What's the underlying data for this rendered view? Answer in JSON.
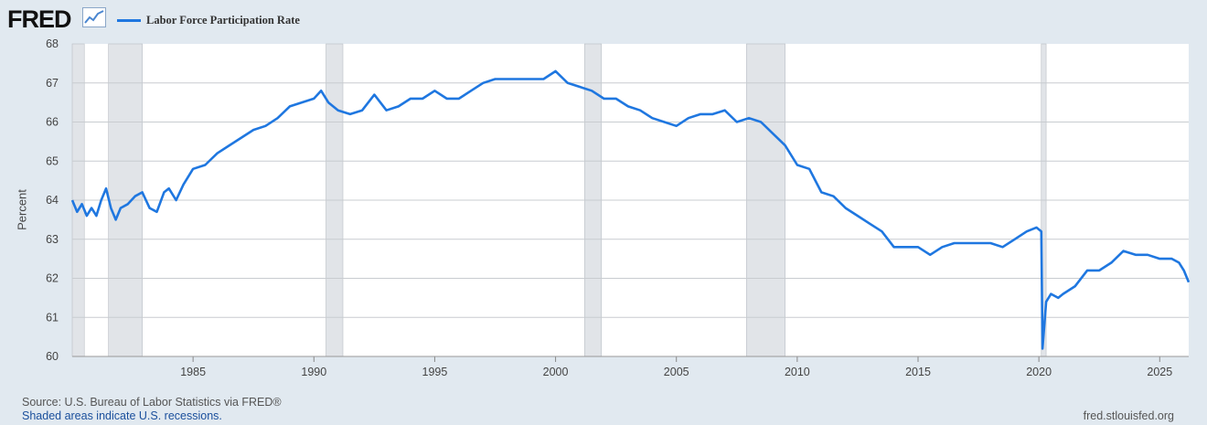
{
  "brand": {
    "logo_text": "FRED",
    "logo_icon": "chart-line-icon"
  },
  "legend": {
    "label": "Labor Force Participation Rate",
    "color": "#1f77e0"
  },
  "footer": {
    "source": "Source: U.S. Bureau of Labor Statistics via FRED®",
    "shading_note": "Shaded areas indicate U.S. recessions.",
    "site": "fred.stlouisfed.org"
  },
  "colors": {
    "background": "#e1e9f0",
    "plot": "#ffffff",
    "grid": "#c8ccd0",
    "recession": "#e1e4e8",
    "line": "#1f77e0"
  },
  "chart_data": {
    "type": "line",
    "title": "",
    "xlabel": "",
    "ylabel": "Percent",
    "xlim": [
      1980.0,
      2026.2
    ],
    "ylim": [
      60,
      68
    ],
    "x_ticks": [
      1985,
      1990,
      1995,
      2000,
      2005,
      2010,
      2015,
      2020,
      2025
    ],
    "y_ticks": [
      60,
      61,
      62,
      63,
      64,
      65,
      66,
      67,
      68
    ],
    "grid": "horizontal",
    "legend_position": "top-left",
    "recessions": [
      [
        1980.0,
        1980.5
      ],
      [
        1981.5,
        1982.9
      ],
      [
        1990.5,
        1991.2
      ],
      [
        2001.2,
        2001.9
      ],
      [
        2007.9,
        2009.5
      ],
      [
        2020.1,
        2020.3
      ]
    ],
    "series": [
      {
        "name": "Labor Force Participation Rate",
        "x": [
          1980.0,
          1980.2,
          1980.4,
          1980.6,
          1980.8,
          1981.0,
          1981.2,
          1981.4,
          1981.6,
          1981.8,
          1982.0,
          1982.3,
          1982.6,
          1982.9,
          1983.2,
          1983.5,
          1983.8,
          1984.0,
          1984.3,
          1984.6,
          1985.0,
          1985.5,
          1986.0,
          1986.5,
          1987.0,
          1987.5,
          1988.0,
          1988.5,
          1989.0,
          1989.5,
          1990.0,
          1990.3,
          1990.6,
          1991.0,
          1991.5,
          1992.0,
          1992.5,
          1993.0,
          1993.5,
          1994.0,
          1994.5,
          1995.0,
          1995.5,
          1996.0,
          1996.5,
          1997.0,
          1997.5,
          1998.0,
          1998.5,
          1999.0,
          1999.5,
          2000.0,
          2000.5,
          2001.0,
          2001.5,
          2002.0,
          2002.5,
          2003.0,
          2003.5,
          2004.0,
          2004.5,
          2005.0,
          2005.5,
          2006.0,
          2006.5,
          2007.0,
          2007.5,
          2008.0,
          2008.5,
          2009.0,
          2009.5,
          2010.0,
          2010.5,
          2011.0,
          2011.5,
          2012.0,
          2012.5,
          2013.0,
          2013.5,
          2014.0,
          2014.5,
          2015.0,
          2015.5,
          2016.0,
          2016.5,
          2017.0,
          2017.5,
          2018.0,
          2018.5,
          2019.0,
          2019.5,
          2019.9,
          2020.1,
          2020.15,
          2020.3,
          2020.5,
          2020.8,
          2021.0,
          2021.5,
          2022.0,
          2022.5,
          2023.0,
          2023.5,
          2024.0,
          2024.5,
          2025.0,
          2025.5,
          2025.8,
          2026.0,
          2026.2
        ],
        "y": [
          64.0,
          63.7,
          63.9,
          63.6,
          63.8,
          63.6,
          64.0,
          64.3,
          63.8,
          63.5,
          63.8,
          63.9,
          64.1,
          64.2,
          63.8,
          63.7,
          64.2,
          64.3,
          64.0,
          64.4,
          64.8,
          64.9,
          65.2,
          65.4,
          65.6,
          65.8,
          65.9,
          66.1,
          66.4,
          66.5,
          66.6,
          66.8,
          66.5,
          66.3,
          66.2,
          66.3,
          66.7,
          66.3,
          66.4,
          66.6,
          66.6,
          66.8,
          66.6,
          66.6,
          66.8,
          67.0,
          67.1,
          67.1,
          67.1,
          67.1,
          67.1,
          67.3,
          67.0,
          66.9,
          66.8,
          66.6,
          66.6,
          66.4,
          66.3,
          66.1,
          66.0,
          65.9,
          66.1,
          66.2,
          66.2,
          66.3,
          66.0,
          66.1,
          66.0,
          65.7,
          65.4,
          64.9,
          64.8,
          64.2,
          64.1,
          63.8,
          63.6,
          63.4,
          63.2,
          62.8,
          62.8,
          62.8,
          62.6,
          62.8,
          62.9,
          62.9,
          62.9,
          62.9,
          62.8,
          63.0,
          63.2,
          63.3,
          63.2,
          60.2,
          61.4,
          61.6,
          61.5,
          61.6,
          61.8,
          62.2,
          62.2,
          62.4,
          62.7,
          62.6,
          62.6,
          62.5,
          62.5,
          62.4,
          62.2,
          61.9
        ]
      }
    ]
  }
}
